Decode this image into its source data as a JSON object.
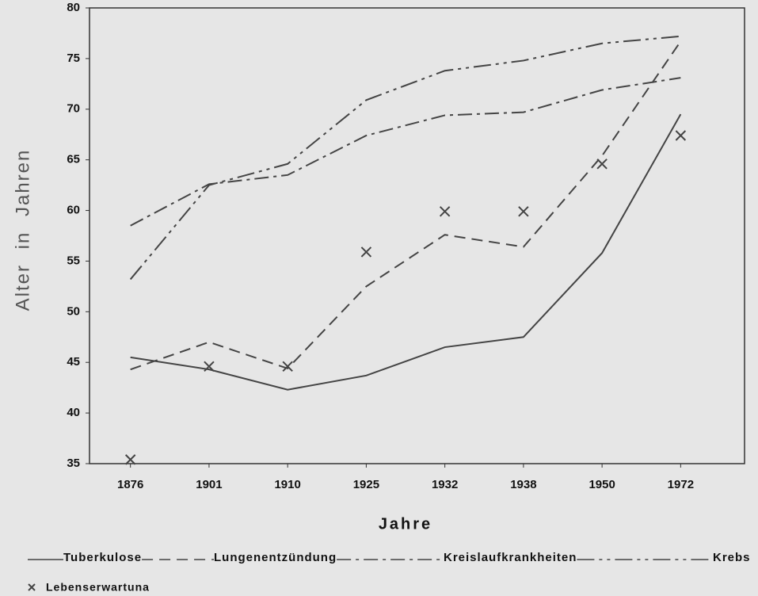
{
  "chart_data": {
    "type": "line",
    "xlabel": "Jahre",
    "ylabel": "Alter in Jahren",
    "categories": [
      "1876",
      "1901",
      "1910",
      "1925",
      "1932",
      "1938",
      "1950",
      "1972"
    ],
    "ylim": [
      35,
      80
    ],
    "yticks": [
      35,
      40,
      45,
      50,
      55,
      60,
      65,
      70,
      75,
      80
    ],
    "series": [
      {
        "name": "Tuberkulose",
        "color": "#444444",
        "style": "solid",
        "values": [
          45.5,
          44.3,
          42.3,
          43.7,
          46.5,
          47.5,
          55.8,
          69.5
        ]
      },
      {
        "name": "Lungenentzündung",
        "color": "#444444",
        "style": "dashed",
        "values": [
          44.3,
          47,
          44.4,
          52.5,
          57.6,
          56.4,
          65.4,
          76.7
        ]
      },
      {
        "name": "Kreislaufkrankheiten",
        "color": "#444444",
        "style": "dashdot",
        "values": [
          58.5,
          62.6,
          63.5,
          67.4,
          69.4,
          69.7,
          71.9,
          73.1
        ]
      },
      {
        "name": "Krebs",
        "color": "#444444",
        "style": "longdashdot",
        "values": [
          53.2,
          62.5,
          64.6,
          70.9,
          73.8,
          74.8,
          76.5,
          77.2
        ]
      },
      {
        "name": "Lebenserwartuna",
        "color": "#444444",
        "style": "markers",
        "values": [
          35.4,
          44.6,
          44.6,
          55.9,
          59.9,
          59.9,
          64.6,
          67.4
        ]
      }
    ]
  }
}
